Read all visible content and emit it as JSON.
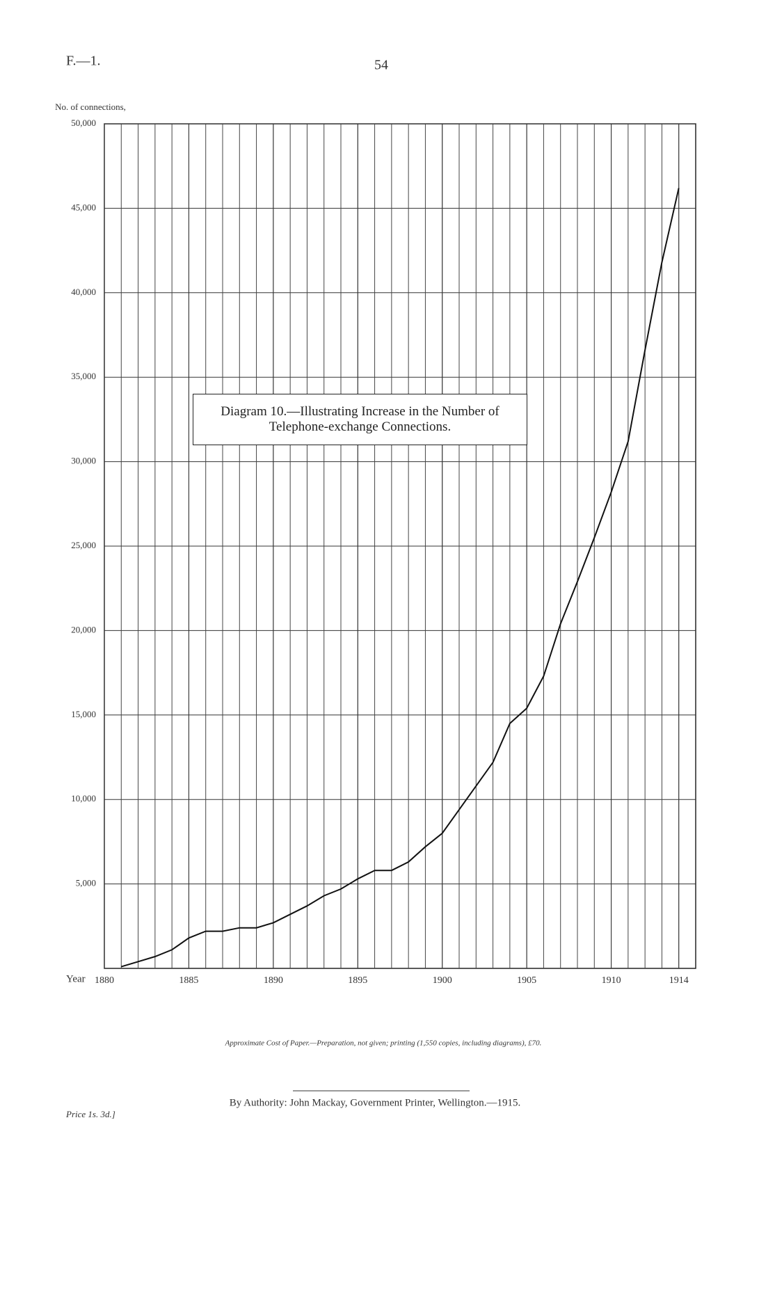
{
  "header": {
    "code": "F.—1.",
    "page": "54"
  },
  "chart_data": {
    "type": "line",
    "title": "Diagram 10.—Illustrating Increase in the Number of Telephone-exchange Connections.",
    "y_label": "No. of connections,",
    "x_label": "Year",
    "color": "#111111",
    "grid": true,
    "x": [
      1881,
      1882,
      1883,
      1884,
      1885,
      1886,
      1887,
      1888,
      1889,
      1890,
      1891,
      1892,
      1893,
      1894,
      1895,
      1896,
      1897,
      1898,
      1899,
      1900,
      1901,
      1902,
      1903,
      1904,
      1905,
      1906,
      1907,
      1908,
      1909,
      1910,
      1911,
      1912,
      1913,
      1914
    ],
    "values": [
      100,
      400,
      700,
      1100,
      1800,
      2200,
      2200,
      2400,
      2400,
      2700,
      3200,
      3700,
      4300,
      4700,
      5300,
      5800,
      5800,
      6300,
      7200,
      8000,
      9400,
      10800,
      12200,
      14500,
      15400,
      17300,
      20400,
      22900,
      25500,
      28200,
      31200,
      36600,
      41800,
      46200
    ],
    "xlim": [
      1880,
      1915
    ],
    "xticks": [
      1880,
      1885,
      1890,
      1895,
      1900,
      1905,
      1910,
      1914
    ],
    "ylim": [
      0,
      50000
    ],
    "yticks": [
      {
        "value": 5000,
        "label": "5,000"
      },
      {
        "value": 10000,
        "label": "10,000"
      },
      {
        "value": 15000,
        "label": "15,000"
      },
      {
        "value": 20000,
        "label": "20,000"
      },
      {
        "value": 25000,
        "label": "25,000"
      },
      {
        "value": 30000,
        "label": "30,000"
      },
      {
        "value": 35000,
        "label": "35,000"
      },
      {
        "value": 40000,
        "label": "40,000"
      },
      {
        "value": 45000,
        "label": "45,000"
      },
      {
        "value": 50000,
        "label": "50,000"
      }
    ]
  },
  "footer": {
    "cost_note": "Approximate Cost of Paper.—Preparation, not given; printing (1,550 copies, including diagrams), £70.",
    "authority": "By Authority: John Mackay, Government Printer, Wellington.—1915.",
    "price": "Price 1s. 3d.]"
  }
}
